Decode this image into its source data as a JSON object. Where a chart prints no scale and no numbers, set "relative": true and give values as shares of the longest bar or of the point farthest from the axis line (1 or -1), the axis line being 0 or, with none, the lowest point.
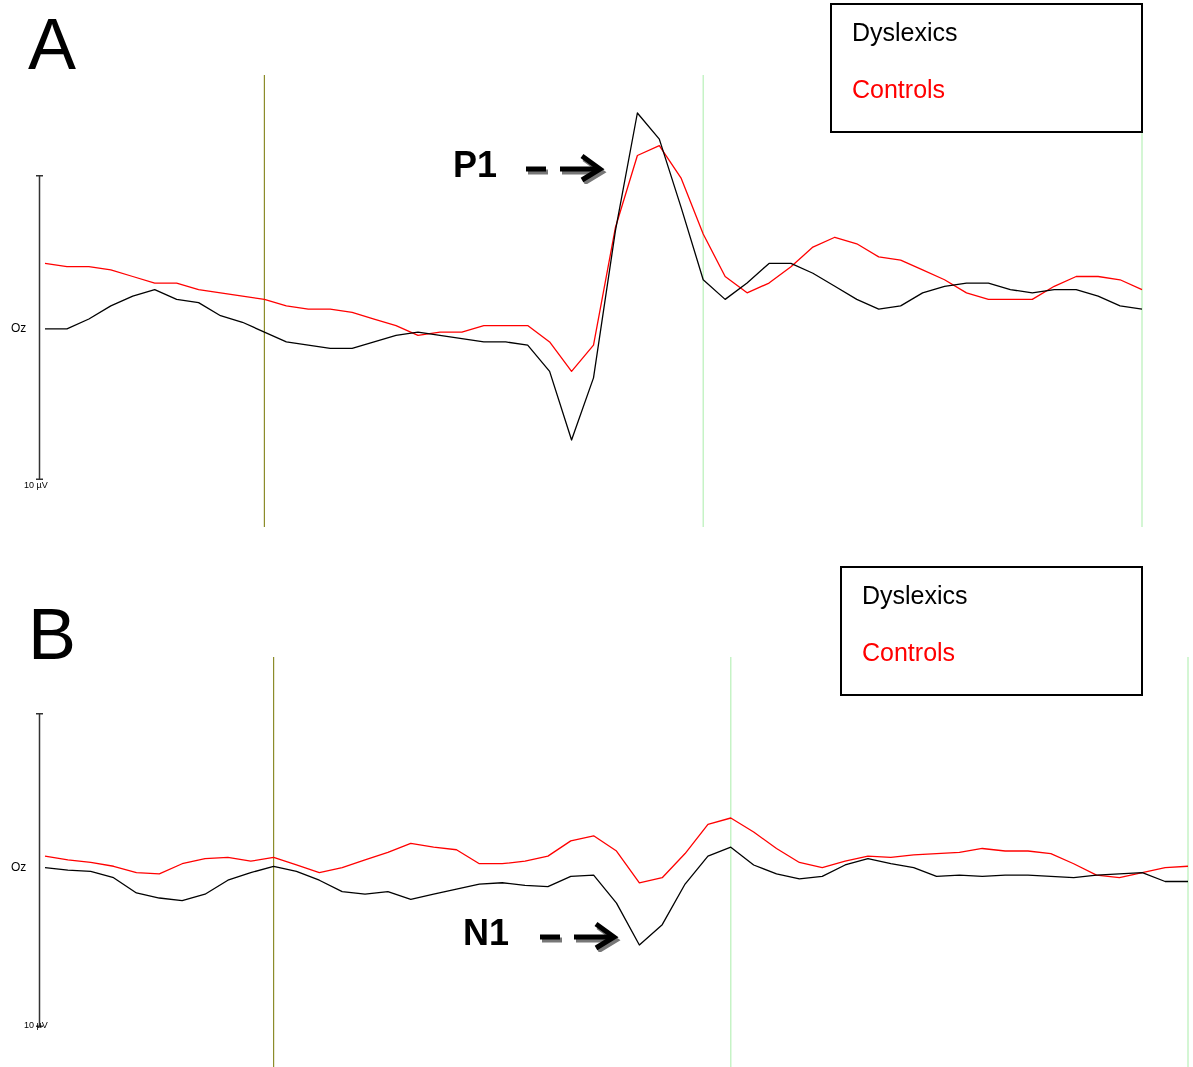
{
  "chart_data": [
    {
      "type": "line",
      "title": "A",
      "relative": true,
      "categories": [
        null,
        null,
        null,
        null,
        null,
        null,
        null,
        null,
        null,
        null,
        null,
        null,
        null,
        null,
        null,
        null,
        null,
        null,
        null,
        null,
        null,
        null,
        null,
        null,
        null,
        null,
        null,
        null,
        null,
        null,
        null,
        null,
        null,
        null,
        null,
        null,
        null,
        null,
        null,
        null,
        null,
        null,
        null,
        null,
        null,
        null,
        null,
        null,
        null,
        null,
        null
      ],
      "series": [
        {
          "name": "Dyslexics",
          "color": "#000000",
          "values": [
            0.34,
            0.34,
            0.37,
            0.41,
            0.44,
            0.46,
            0.43,
            0.42,
            0.38,
            0.36,
            0.33,
            0.3,
            0.29,
            0.28,
            0.28,
            0.3,
            0.32,
            0.33,
            0.32,
            0.31,
            0.3,
            0.3,
            0.29,
            0.21,
            0,
            0.19,
            0.64,
            1,
            0.92,
            0.71,
            0.49,
            0.43,
            0.48,
            0.54,
            0.54,
            0.51,
            0.47,
            0.43,
            0.4,
            0.41,
            0.45,
            0.47,
            0.48,
            0.48,
            0.46,
            0.45,
            0.46,
            0.46,
            0.44,
            0.41,
            0.4
          ]
        },
        {
          "name": "Controls",
          "color": "#ff0000",
          "values": [
            0.54,
            0.53,
            0.53,
            0.52,
            0.5,
            0.48,
            0.48,
            0.46,
            0.45,
            0.44,
            0.43,
            0.41,
            0.4,
            0.4,
            0.39,
            0.37,
            0.35,
            0.32,
            0.33,
            0.33,
            0.35,
            0.35,
            0.35,
            0.3,
            0.21,
            0.29,
            0.65,
            0.87,
            0.9,
            0.8,
            0.63,
            0.5,
            0.45,
            0.48,
            0.53,
            0.59,
            0.62,
            0.6,
            0.56,
            0.55,
            0.52,
            0.49,
            0.45,
            0.43,
            0.43,
            0.43,
            0.47,
            0.5,
            0.5,
            0.49,
            0.46
          ]
        }
      ],
      "annotations": [
        "Oz",
        "10 µV",
        "P1"
      ]
    },
    {
      "type": "line",
      "title": "B",
      "relative": true,
      "categories": [
        null,
        null,
        null,
        null,
        null,
        null,
        null,
        null,
        null,
        null,
        null,
        null,
        null,
        null,
        null,
        null,
        null,
        null,
        null,
        null,
        null,
        null,
        null,
        null,
        null,
        null,
        null,
        null,
        null,
        null,
        null,
        null,
        null,
        null,
        null,
        null,
        null,
        null,
        null,
        null,
        null,
        null,
        null,
        null,
        null,
        null,
        null,
        null,
        null,
        null,
        null
      ],
      "series": [
        {
          "name": "Dyslexics",
          "color": "#000000",
          "values": [
            0.61,
            0.59,
            0.58,
            0.53,
            0.41,
            0.37,
            0.35,
            0.4,
            0.51,
            0.57,
            0.62,
            0.58,
            0.51,
            0.42,
            0.4,
            0.42,
            0.36,
            0.4,
            0.44,
            0.48,
            0.49,
            0.47,
            0.46,
            0.54,
            0.55,
            0.33,
            0,
            0.16,
            0.48,
            0.7,
            0.77,
            0.63,
            0.56,
            0.52,
            0.54,
            0.63,
            0.68,
            0.64,
            0.61,
            0.54,
            0.55,
            0.54,
            0.55,
            0.55,
            0.54,
            0.53,
            0.55,
            0.56,
            0.57,
            0.5,
            0.5
          ]
        },
        {
          "name": "Controls",
          "color": "#ff0000",
          "values": [
            0.7,
            0.67,
            0.65,
            0.62,
            0.57,
            0.56,
            0.64,
            0.68,
            0.69,
            0.66,
            0.69,
            0.63,
            0.57,
            0.61,
            0.67,
            0.73,
            0.8,
            0.77,
            0.75,
            0.64,
            0.64,
            0.66,
            0.7,
            0.82,
            0.86,
            0.74,
            0.49,
            0.53,
            0.72,
            0.95,
            1,
            0.89,
            0.76,
            0.65,
            0.61,
            0.66,
            0.7,
            0.69,
            0.71,
            0.72,
            0.73,
            0.76,
            0.74,
            0.74,
            0.72,
            0.64,
            0.55,
            0.53,
            0.57,
            0.61,
            0.62
          ]
        }
      ],
      "annotations": [
        "Oz",
        "10 µV",
        "N1"
      ]
    }
  ]
}
